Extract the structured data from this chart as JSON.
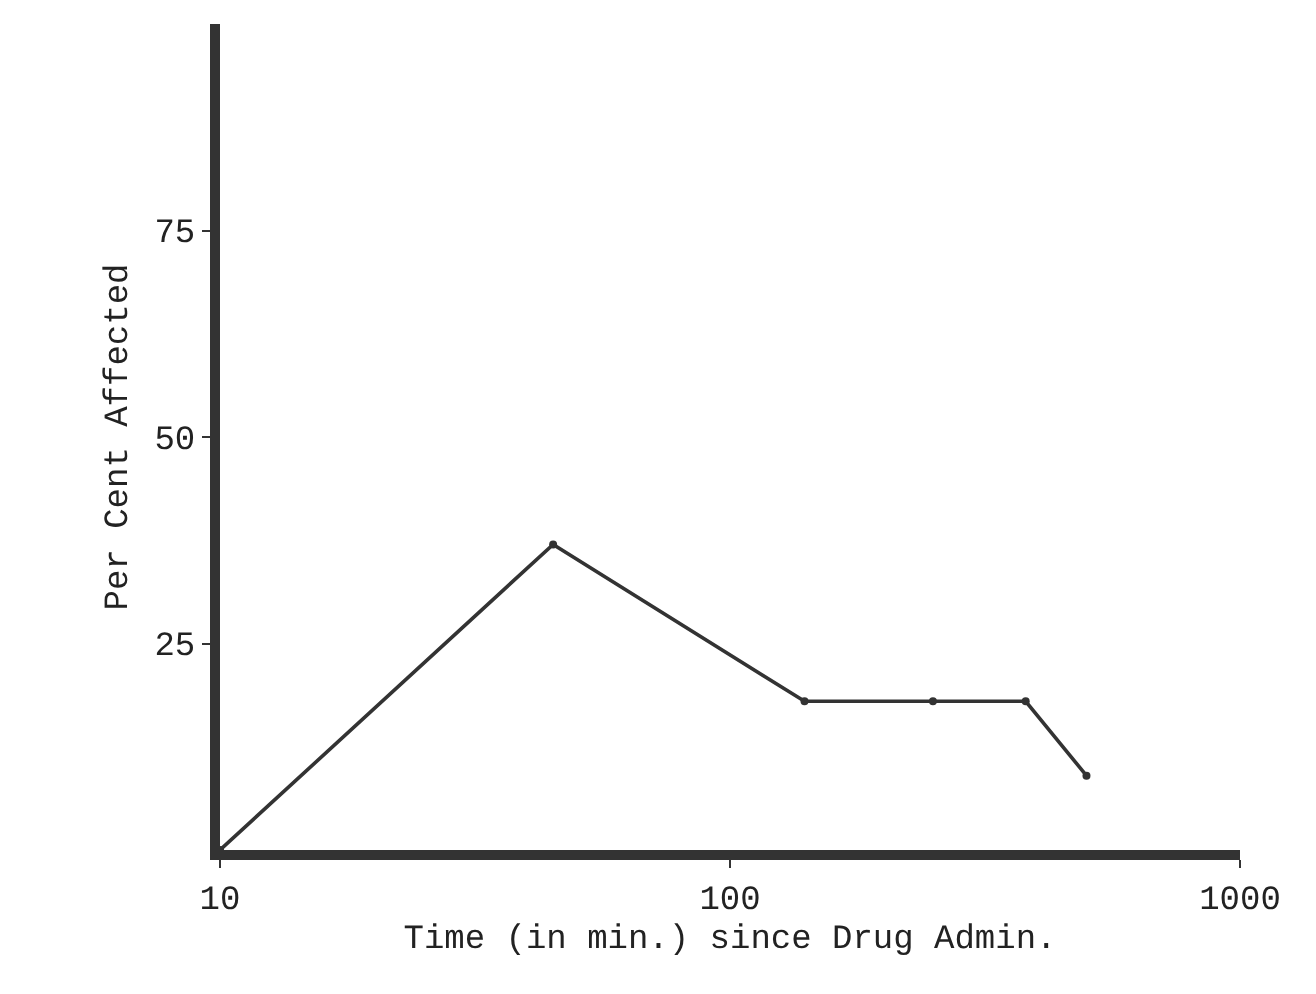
{
  "chart_data": {
    "type": "line",
    "xlabel": "Time (in min.) since Drug Admin.",
    "ylabel": "Per Cent Affected",
    "x": [
      10,
      45,
      140,
      250,
      380,
      500
    ],
    "series": [
      {
        "color": "#333333",
        "values": [
          0,
          37,
          18,
          18,
          18,
          9
        ]
      }
    ],
    "xlim": [
      10,
      1000
    ],
    "xticks": [
      10,
      100,
      1000
    ],
    "ylim": [
      0,
      100
    ],
    "yticks": [
      25,
      50,
      75
    ],
    "log": "x",
    "grid": false,
    "marker": "circle",
    "line_style": "solid"
  }
}
